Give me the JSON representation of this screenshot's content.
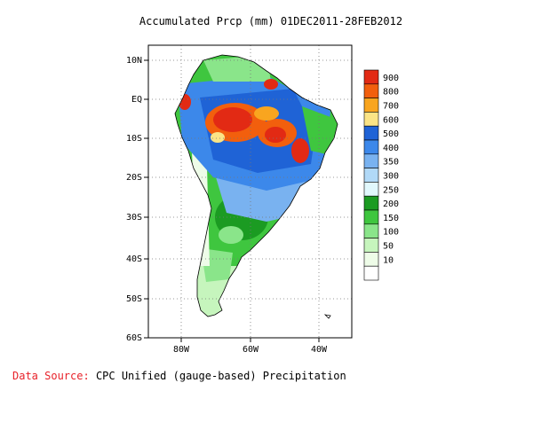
{
  "map": {
    "title": "Accumulated Prcp (mm) 01DEC2011-28FEB2012",
    "region": "South America",
    "lat_ticks": [
      "10N",
      "EQ",
      "10S",
      "20S",
      "30S",
      "40S",
      "50S",
      "60S"
    ],
    "lon_ticks": [
      "80W",
      "60W",
      "40W"
    ],
    "grid": "dotted"
  },
  "legend": {
    "entries": [
      {
        "label": "900",
        "color": "#e22a14"
      },
      {
        "label": "800",
        "color": "#f25f0d"
      },
      {
        "label": "700",
        "color": "#f9a51f"
      },
      {
        "label": "600",
        "color": "#fbe486"
      },
      {
        "label": "500",
        "color": "#1f63d6"
      },
      {
        "label": "400",
        "color": "#3c88ea"
      },
      {
        "label": "350",
        "color": "#79b2f0"
      },
      {
        "label": "300",
        "color": "#b1d9f7"
      },
      {
        "label": "250",
        "color": "#e1f8fc"
      },
      {
        "label": "200",
        "color": "#1b9b22"
      },
      {
        "label": "150",
        "color": "#3fc63f"
      },
      {
        "label": "100",
        "color": "#8ae58a"
      },
      {
        "label": "50",
        "color": "#c6f5bd"
      },
      {
        "label": "10",
        "color": "#eefce8"
      },
      {
        "label": "",
        "color": "#ffffff"
      }
    ]
  },
  "source": {
    "label": "Data Source:",
    "text": "CPC Unified (gauge-based) Precipitation"
  }
}
